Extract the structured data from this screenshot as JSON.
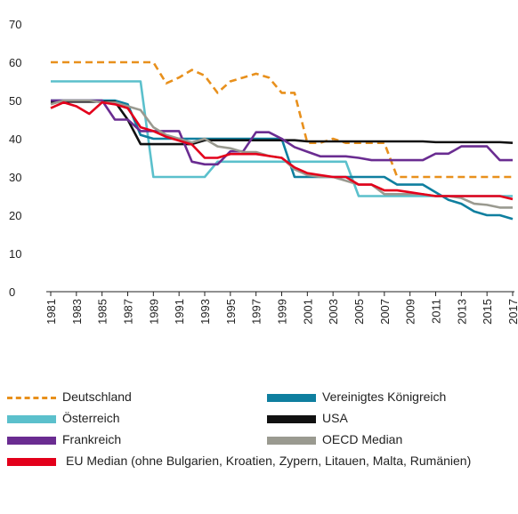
{
  "chart_data": {
    "type": "line",
    "x": [
      1981,
      1982,
      1983,
      1984,
      1985,
      1986,
      1987,
      1988,
      1989,
      1990,
      1991,
      1992,
      1993,
      1994,
      1995,
      1996,
      1997,
      1998,
      1999,
      2000,
      2001,
      2002,
      2003,
      2004,
      2005,
      2006,
      2007,
      2008,
      2009,
      2010,
      2011,
      2012,
      2013,
      2014,
      2015,
      2016,
      2017
    ],
    "xlim": [
      1981,
      2017
    ],
    "xticks": [
      1981,
      1983,
      1985,
      1987,
      1989,
      1991,
      1993,
      1995,
      1997,
      1999,
      2001,
      2003,
      2005,
      2007,
      2009,
      2011,
      2013,
      2015,
      2017
    ],
    "ylim": [
      0,
      70
    ],
    "yticks": [
      0,
      10,
      20,
      30,
      40,
      50,
      60,
      70
    ],
    "series": [
      {
        "name": "Deutschland",
        "color": "#e8901c",
        "dash": "dashed",
        "values": [
          60,
          60,
          60,
          60,
          60,
          60,
          60,
          60,
          60,
          54.5,
          56,
          58,
          56.5,
          52,
          55,
          56,
          57,
          56,
          52,
          52,
          38.9,
          38.9,
          40,
          38.9,
          38.9,
          38.9,
          38.9,
          30,
          30,
          30,
          30,
          30,
          30,
          30,
          30,
          30,
          30
        ]
      },
      {
        "name": "Österreich",
        "color": "#5bc0cc",
        "values": [
          55,
          55,
          55,
          55,
          55,
          55,
          55,
          55,
          30,
          30,
          30,
          30,
          30,
          34,
          34,
          34,
          34,
          34,
          34,
          34,
          34,
          34,
          34,
          34,
          25,
          25,
          25,
          25,
          25,
          25,
          25,
          25,
          25,
          25,
          25,
          25,
          25
        ]
      },
      {
        "name": "Vereinigtes Königreich",
        "color": "#0f7f9f",
        "values": [
          50,
          50,
          50,
          50,
          50,
          50,
          49,
          41,
          40,
          40,
          40,
          40,
          40,
          40,
          40,
          40,
          40,
          40,
          40,
          30,
          30,
          30,
          30,
          30,
          30,
          30,
          30,
          28,
          28,
          28,
          26,
          24,
          23,
          21,
          20,
          20,
          19
        ]
      },
      {
        "name": "USA",
        "color": "#111111",
        "values": [
          49.7,
          49.7,
          49.7,
          49.7,
          49.7,
          49.7,
          45,
          38.6,
          38.6,
          38.6,
          38.6,
          38.6,
          39.6,
          39.6,
          39.6,
          39.6,
          39.6,
          39.6,
          39.6,
          39.6,
          39.3,
          39.3,
          39.3,
          39.3,
          39.3,
          39.3,
          39.3,
          39.3,
          39.3,
          39.3,
          39.1,
          39.1,
          39.1,
          39.1,
          39.1,
          39.1,
          38.9
        ]
      },
      {
        "name": "Frankreich",
        "color": "#6a2c91",
        "values": [
          50,
          50,
          50,
          50,
          50,
          45,
          45,
          42,
          42,
          42,
          42,
          34,
          33.3,
          33.3,
          36.7,
          36.7,
          41.7,
          41.7,
          40,
          37.8,
          36.6,
          35.4,
          35.4,
          35.4,
          35,
          34.4,
          34.4,
          34.4,
          34.4,
          34.4,
          36.1,
          36.1,
          38,
          38,
          38,
          34.4,
          34.4
        ]
      },
      {
        "name": "OECD Median",
        "color": "#9a9a90",
        "values": [
          49,
          50,
          50,
          50,
          49.5,
          49.5,
          48.5,
          47.5,
          43,
          41,
          40,
          39,
          40,
          38,
          37.5,
          36.5,
          36.5,
          35.5,
          35,
          32,
          30.5,
          30,
          30,
          29,
          28,
          28,
          25.5,
          25.5,
          25.5,
          25.5,
          25,
          25,
          24.5,
          23,
          22.7,
          22,
          22
        ]
      },
      {
        "name": "EU Median  (ohne Bulgarien, Kroatien, Zypern, Litauen, Malta, Rumänien)",
        "color": "#e3001b",
        "values": [
          48,
          49.5,
          48.5,
          46.5,
          49.5,
          49,
          48,
          43,
          42,
          40.5,
          39.5,
          38.5,
          35,
          35,
          36,
          36,
          36,
          35.5,
          35,
          32.5,
          31,
          30.5,
          30,
          30,
          28,
          28,
          26.5,
          26.5,
          26,
          25.5,
          25,
          25,
          25,
          25,
          25,
          25,
          24.2
        ]
      }
    ]
  }
}
